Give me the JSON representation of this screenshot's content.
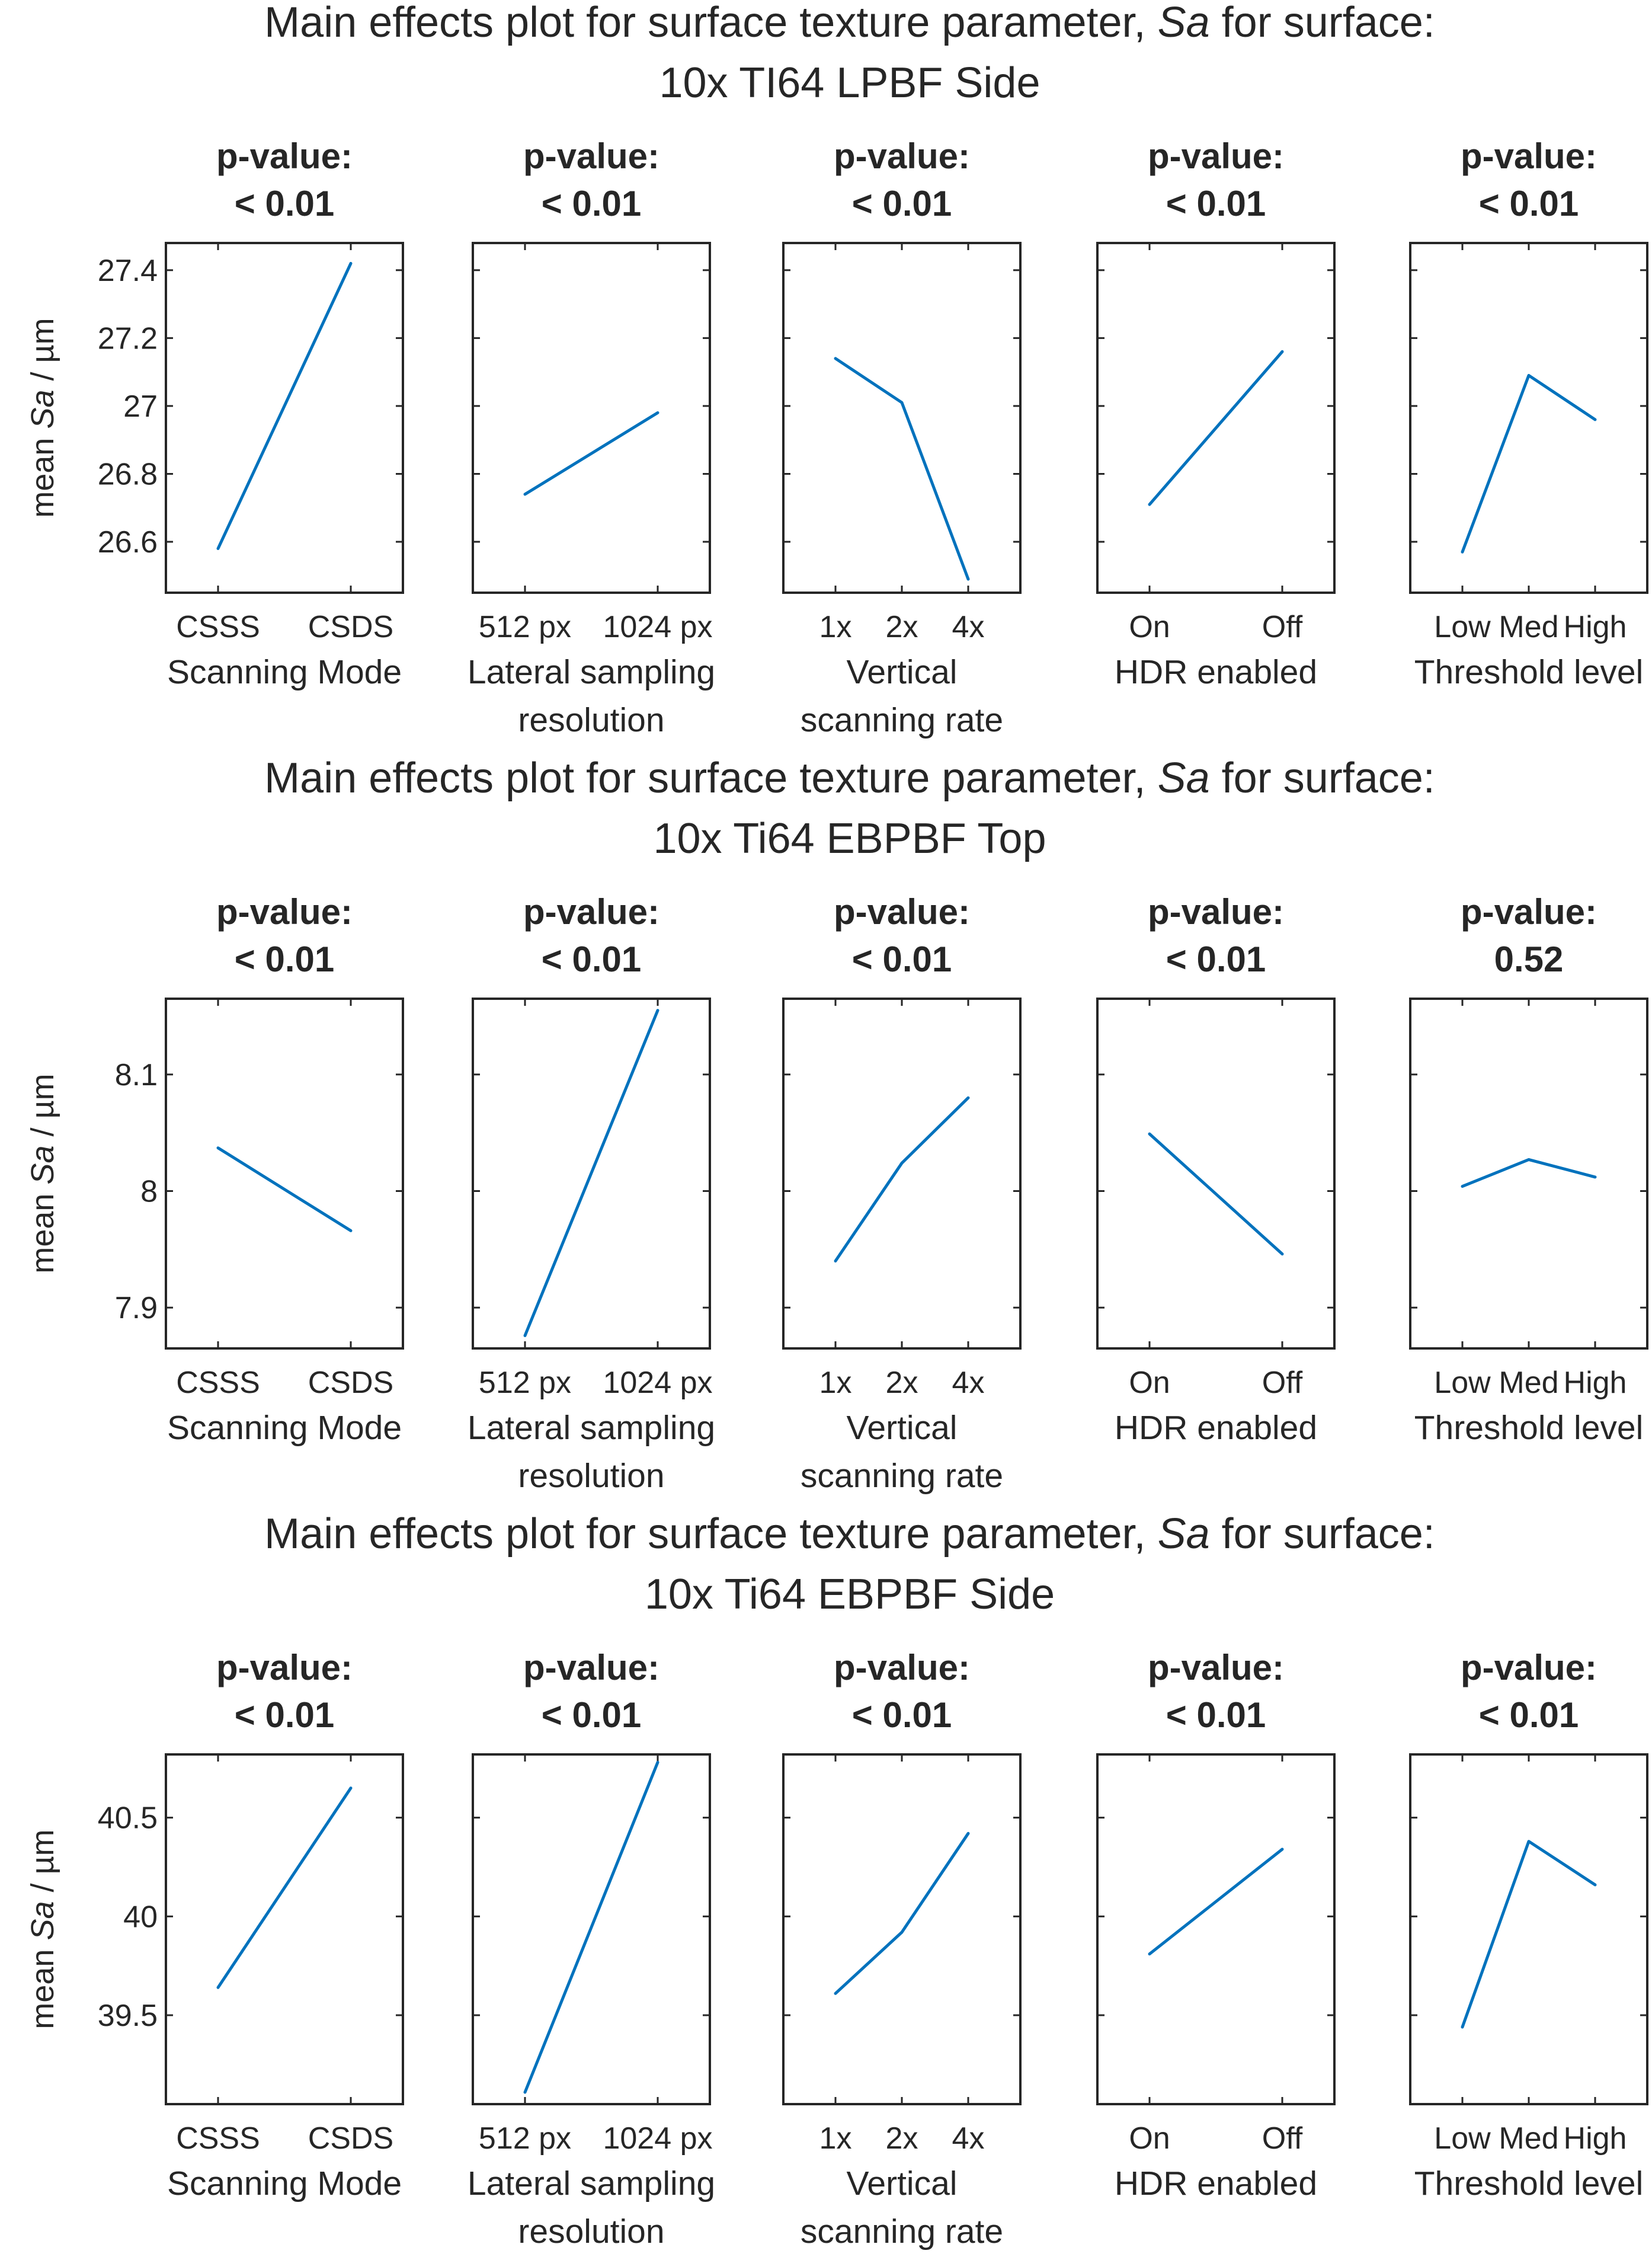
{
  "colors": {
    "series": "#0072bd",
    "axis": "#262626"
  },
  "chart_data": [
    {
      "type": "line",
      "title_prefix": "Main effects plot for surface texture parameter, ",
      "title_param": "Sa",
      "title_suffix": " for surface:",
      "title_line2": "10x TI64 LPBF Side",
      "ylabel_prefix": "mean ",
      "ylabel_param": "Sa",
      "ylabel_suffix": " / µm",
      "ylim": [
        26.45,
        27.48
      ],
      "yticks": [
        26.6,
        26.8,
        27.0,
        27.2,
        27.4
      ],
      "ytick_labels": [
        "26.6",
        "26.8",
        "27",
        "27.2",
        "27.4"
      ],
      "factors": [
        {
          "pvalue_label": "p-value:",
          "pvalue": "< 0.01",
          "categories": [
            "CSSS",
            "CSDS"
          ],
          "values": [
            26.58,
            27.42
          ],
          "xlabel": [
            "Scanning Mode"
          ]
        },
        {
          "pvalue_label": "p-value:",
          "pvalue": "< 0.01",
          "categories": [
            "512 px",
            "1024 px"
          ],
          "values": [
            26.74,
            26.98
          ],
          "xlabel": [
            "Lateral sampling",
            "resolution"
          ]
        },
        {
          "pvalue_label": "p-value:",
          "pvalue": "< 0.01",
          "categories": [
            "1x",
            "2x",
            "4x"
          ],
          "values": [
            27.14,
            27.01,
            26.49
          ],
          "xlabel": [
            "Vertical",
            "scanning rate"
          ]
        },
        {
          "pvalue_label": "p-value:",
          "pvalue": "< 0.01",
          "categories": [
            "On",
            "Off"
          ],
          "values": [
            26.71,
            27.16
          ],
          "xlabel": [
            "HDR enabled"
          ]
        },
        {
          "pvalue_label": "p-value:",
          "pvalue": "< 0.01",
          "categories": [
            "Low",
            "Med",
            "High"
          ],
          "values": [
            26.57,
            27.09,
            26.96
          ],
          "xlabel": [
            "Threshold level"
          ]
        }
      ]
    },
    {
      "type": "line",
      "title_prefix": "Main effects plot for surface texture parameter, ",
      "title_param": "Sa",
      "title_suffix": " for surface:",
      "title_line2": "10x Ti64 EBPBF Top",
      "ylabel_prefix": "mean ",
      "ylabel_param": "Sa",
      "ylabel_suffix": " / µm",
      "ylim": [
        7.865,
        8.165
      ],
      "yticks": [
        7.9,
        8.0,
        8.1
      ],
      "ytick_labels": [
        "7.9",
        "8",
        "8.1"
      ],
      "factors": [
        {
          "pvalue_label": "p-value:",
          "pvalue": "< 0.01",
          "categories": [
            "CSSS",
            "CSDS"
          ],
          "values": [
            8.037,
            7.966
          ],
          "xlabel": [
            "Scanning Mode"
          ]
        },
        {
          "pvalue_label": "p-value:",
          "pvalue": "< 0.01",
          "categories": [
            "512 px",
            "1024 px"
          ],
          "values": [
            7.876,
            8.155
          ],
          "xlabel": [
            "Lateral sampling",
            "resolution"
          ]
        },
        {
          "pvalue_label": "p-value:",
          "pvalue": "< 0.01",
          "categories": [
            "1x",
            "2x",
            "4x"
          ],
          "values": [
            7.94,
            8.024,
            8.08
          ],
          "xlabel": [
            "Vertical",
            "scanning rate"
          ]
        },
        {
          "pvalue_label": "p-value:",
          "pvalue": "< 0.01",
          "categories": [
            "On",
            "Off"
          ],
          "values": [
            8.049,
            7.946
          ],
          "xlabel": [
            "HDR enabled"
          ]
        },
        {
          "pvalue_label": "p-value:",
          "pvalue": "0.52",
          "categories": [
            "Low",
            "Med",
            "High"
          ],
          "values": [
            8.004,
            8.027,
            8.012
          ],
          "xlabel": [
            "Threshold level"
          ]
        }
      ]
    },
    {
      "type": "line",
      "title_prefix": "Main effects plot for surface texture parameter, ",
      "title_param": "Sa",
      "title_suffix": " for surface:",
      "title_line2": "10x Ti64 EBPBF Side",
      "ylabel_prefix": "mean ",
      "ylabel_param": "Sa",
      "ylabel_suffix": " / µm",
      "ylim": [
        39.05,
        40.82
      ],
      "yticks": [
        39.5,
        40.0,
        40.5
      ],
      "ytick_labels": [
        "39.5",
        "40",
        "40.5"
      ],
      "factors": [
        {
          "pvalue_label": "p-value:",
          "pvalue": "< 0.01",
          "categories": [
            "CSSS",
            "CSDS"
          ],
          "values": [
            39.64,
            40.65
          ],
          "xlabel": [
            "Scanning Mode"
          ]
        },
        {
          "pvalue_label": "p-value:",
          "pvalue": "< 0.01",
          "categories": [
            "512 px",
            "1024 px"
          ],
          "values": [
            39.11,
            40.78
          ],
          "xlabel": [
            "Lateral sampling",
            "resolution"
          ]
        },
        {
          "pvalue_label": "p-value:",
          "pvalue": "< 0.01",
          "categories": [
            "1x",
            "2x",
            "4x"
          ],
          "values": [
            39.61,
            39.92,
            40.42
          ],
          "xlabel": [
            "Vertical",
            "scanning rate"
          ]
        },
        {
          "pvalue_label": "p-value:",
          "pvalue": "< 0.01",
          "categories": [
            "On",
            "Off"
          ],
          "values": [
            39.81,
            40.34
          ],
          "xlabel": [
            "HDR enabled"
          ]
        },
        {
          "pvalue_label": "p-value:",
          "pvalue": "< 0.01",
          "categories": [
            "Low",
            "Med",
            "High"
          ],
          "values": [
            39.44,
            40.38,
            40.16
          ],
          "xlabel": [
            "Threshold level"
          ]
        }
      ]
    }
  ]
}
